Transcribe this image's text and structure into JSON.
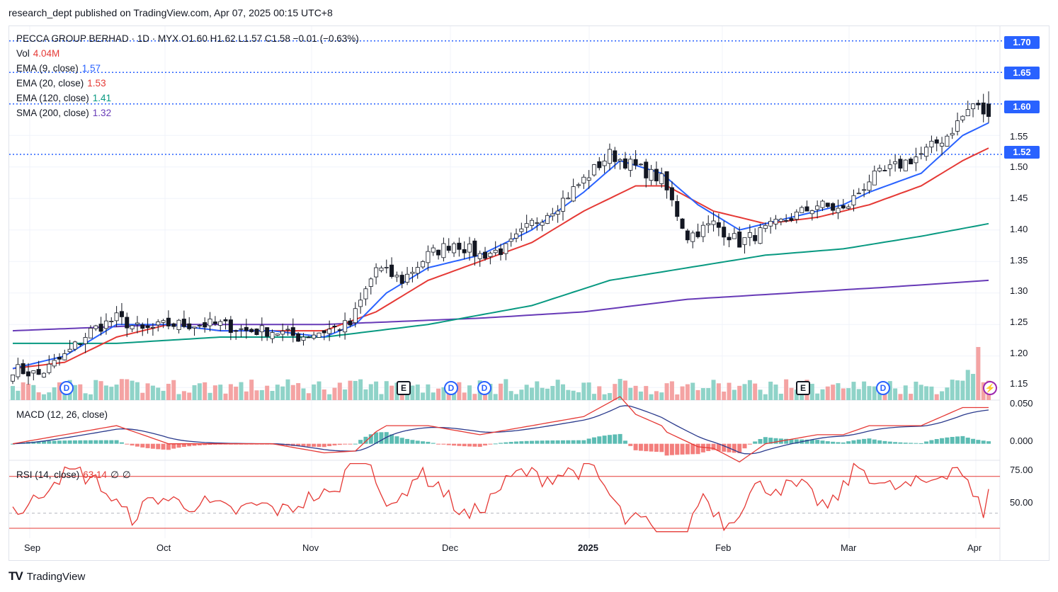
{
  "header": {
    "publish_line": "research_dept published on TradingView.com, Apr 07, 2025 00:15 UTC+8"
  },
  "legend": {
    "symbol_line": "PECCA GROUP BERHAD · 1D · MYX  O1.60  H1.62  L1.57  C1.58  −0.01 (−0.63%)",
    "vol_label": "Vol",
    "vol_value": "4.04M",
    "ema9_label": "EMA (9, close)",
    "ema9_value": "1.57",
    "ema20_label": "EMA (20, close)",
    "ema20_value": "1.53",
    "ema120_label": "EMA (120, close)",
    "ema120_value": "1.41",
    "sma200_label": "SMA (200, close)",
    "sma200_value": "1.32",
    "macd_label": "MACD (12, 26, close)",
    "rsi_label": "RSI (14, close)",
    "rsi_value": "63.14",
    "rsi_extra1": "∅",
    "rsi_extra2": "∅"
  },
  "price_axis": {
    "highlight_levels": [
      "1.70",
      "1.65",
      "1.60",
      "1.52"
    ],
    "tick_labels": [
      "1.55",
      "1.50",
      "1.45",
      "1.40",
      "1.35",
      "1.30",
      "1.25",
      "1.20",
      "1.15"
    ],
    "macd_ticks": [
      "0.050",
      "0.000"
    ],
    "rsi_ticks": [
      "75.00",
      "50.00"
    ]
  },
  "time_axis": [
    "Sep",
    "Oct",
    "Nov",
    "Dec",
    "2025",
    "Feb",
    "Mar",
    "Apr"
  ],
  "event_markers": [
    {
      "type": "D",
      "label": "D"
    },
    {
      "type": "E",
      "label": "E"
    },
    {
      "type": "D",
      "label": "D"
    },
    {
      "type": "D",
      "label": "D"
    },
    {
      "type": "E",
      "label": "E"
    },
    {
      "type": "D",
      "label": "D"
    },
    {
      "type": "flash",
      "label": "⚡"
    }
  ],
  "branding": {
    "logo": "TV",
    "name": "TradingView"
  },
  "colors": {
    "up": "#ffffff",
    "down": "#131722",
    "ema9": "#2962ff",
    "ema20": "#e53935",
    "ema120": "#089981",
    "sma200": "#673ab7",
    "vol_up": "#8fd3c8",
    "vol_down": "#f4a3a3",
    "price_box": "#2962ff",
    "macd": "#2a3a8c",
    "signal": "#e53935",
    "rsi": "#e53935"
  },
  "chart_data": {
    "type": "candlestick",
    "symbol": "PECCA GROUP BERHAD",
    "interval": "1D",
    "exchange": "MYX",
    "last_bar": {
      "open": 1.6,
      "high": 1.62,
      "low": 1.57,
      "close": 1.58,
      "change": -0.01,
      "change_pct": -0.63
    },
    "price_range": [
      1.13,
      1.72
    ],
    "anchors": {
      "close": [
        [
          0,
          1.18
        ],
        [
          5,
          1.17
        ],
        [
          10,
          1.2
        ],
        [
          15,
          1.24
        ],
        [
          20,
          1.26
        ],
        [
          25,
          1.24
        ],
        [
          30,
          1.25
        ],
        [
          35,
          1.25
        ],
        [
          40,
          1.25
        ],
        [
          45,
          1.24
        ],
        [
          50,
          1.24
        ],
        [
          55,
          1.23
        ],
        [
          60,
          1.24
        ],
        [
          65,
          1.25
        ],
        [
          70,
          1.34
        ],
        [
          75,
          1.32
        ],
        [
          80,
          1.36
        ],
        [
          85,
          1.38
        ],
        [
          90,
          1.36
        ],
        [
          95,
          1.37
        ],
        [
          100,
          1.41
        ],
        [
          105,
          1.44
        ],
        [
          110,
          1.48
        ],
        [
          115,
          1.52
        ],
        [
          120,
          1.5
        ],
        [
          125,
          1.48
        ],
        [
          130,
          1.39
        ],
        [
          135,
          1.41
        ],
        [
          140,
          1.38
        ],
        [
          145,
          1.4
        ],
        [
          150,
          1.42
        ],
        [
          155,
          1.44
        ],
        [
          160,
          1.43
        ],
        [
          165,
          1.48
        ],
        [
          170,
          1.5
        ],
        [
          175,
          1.52
        ],
        [
          180,
          1.55
        ],
        [
          185,
          1.6
        ],
        [
          188,
          1.58
        ]
      ]
    },
    "ema9_anchors": [
      [
        0,
        1.18
      ],
      [
        10,
        1.2
      ],
      [
        20,
        1.25
      ],
      [
        30,
        1.25
      ],
      [
        40,
        1.24
      ],
      [
        50,
        1.24
      ],
      [
        60,
        1.23
      ],
      [
        66,
        1.25
      ],
      [
        72,
        1.3
      ],
      [
        80,
        1.34
      ],
      [
        90,
        1.36
      ],
      [
        100,
        1.4
      ],
      [
        110,
        1.46
      ],
      [
        117,
        1.51
      ],
      [
        125,
        1.49
      ],
      [
        132,
        1.44
      ],
      [
        140,
        1.4
      ],
      [
        150,
        1.42
      ],
      [
        160,
        1.44
      ],
      [
        165,
        1.46
      ],
      [
        175,
        1.49
      ],
      [
        183,
        1.55
      ],
      [
        188,
        1.57
      ]
    ],
    "ema20_anchors": [
      [
        0,
        1.18
      ],
      [
        10,
        1.19
      ],
      [
        20,
        1.23
      ],
      [
        30,
        1.25
      ],
      [
        40,
        1.24
      ],
      [
        50,
        1.24
      ],
      [
        60,
        1.24
      ],
      [
        70,
        1.27
      ],
      [
        80,
        1.32
      ],
      [
        90,
        1.35
      ],
      [
        100,
        1.38
      ],
      [
        110,
        1.43
      ],
      [
        120,
        1.47
      ],
      [
        126,
        1.47
      ],
      [
        135,
        1.43
      ],
      [
        145,
        1.41
      ],
      [
        155,
        1.42
      ],
      [
        165,
        1.44
      ],
      [
        175,
        1.47
      ],
      [
        183,
        1.51
      ],
      [
        188,
        1.53
      ]
    ],
    "ema120_anchors": [
      [
        0,
        1.22
      ],
      [
        20,
        1.22
      ],
      [
        40,
        1.23
      ],
      [
        60,
        1.23
      ],
      [
        80,
        1.25
      ],
      [
        100,
        1.28
      ],
      [
        115,
        1.32
      ],
      [
        130,
        1.34
      ],
      [
        145,
        1.36
      ],
      [
        160,
        1.37
      ],
      [
        175,
        1.39
      ],
      [
        188,
        1.41
      ]
    ],
    "sma200_anchors": [
      [
        0,
        1.24
      ],
      [
        30,
        1.25
      ],
      [
        60,
        1.25
      ],
      [
        90,
        1.26
      ],
      [
        110,
        1.27
      ],
      [
        130,
        1.29
      ],
      [
        150,
        1.3
      ],
      [
        170,
        1.31
      ],
      [
        188,
        1.32
      ]
    ],
    "volume_last": "4.04M",
    "macd": {
      "params": "12, 26, close",
      "range": [
        -0.02,
        0.055
      ]
    },
    "rsi": {
      "params": "14, close",
      "last": 63.14,
      "bands": [
        70,
        30
      ],
      "range": [
        38,
        78
      ]
    },
    "event_bars": [
      11,
      76,
      85,
      90,
      156,
      166,
      186
    ]
  }
}
